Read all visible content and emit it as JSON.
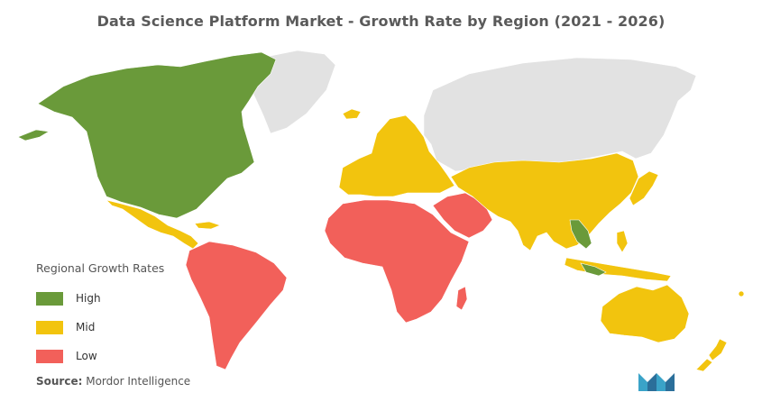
{
  "title": "Data Science Platform Market - Growth Rate by Region (2021 - 2026)",
  "colors": {
    "high": "#6a9a3a",
    "mid": "#f2c40e",
    "low": "#f2605a",
    "no_data": "#e2e2e2"
  },
  "legend": {
    "title": "Regional Growth Rates",
    "items": [
      {
        "label": "High",
        "color": "#6a9a3a"
      },
      {
        "label": "Mid",
        "color": "#f2c40e"
      },
      {
        "label": "Low",
        "color": "#f2605a"
      }
    ]
  },
  "regions": [
    {
      "region": "North America",
      "rate": "High"
    },
    {
      "region": "Europe",
      "rate": "Mid"
    },
    {
      "region": "Asia-Pacific",
      "rate": "Mid"
    },
    {
      "region": "Latin America",
      "rate": "Low"
    },
    {
      "region": "Middle East and Africa",
      "rate": "Low"
    }
  ],
  "source": {
    "label": "Source:",
    "text": "Mordor Intelligence"
  },
  "logo_icon": "mordor-intelligence-logo-icon"
}
